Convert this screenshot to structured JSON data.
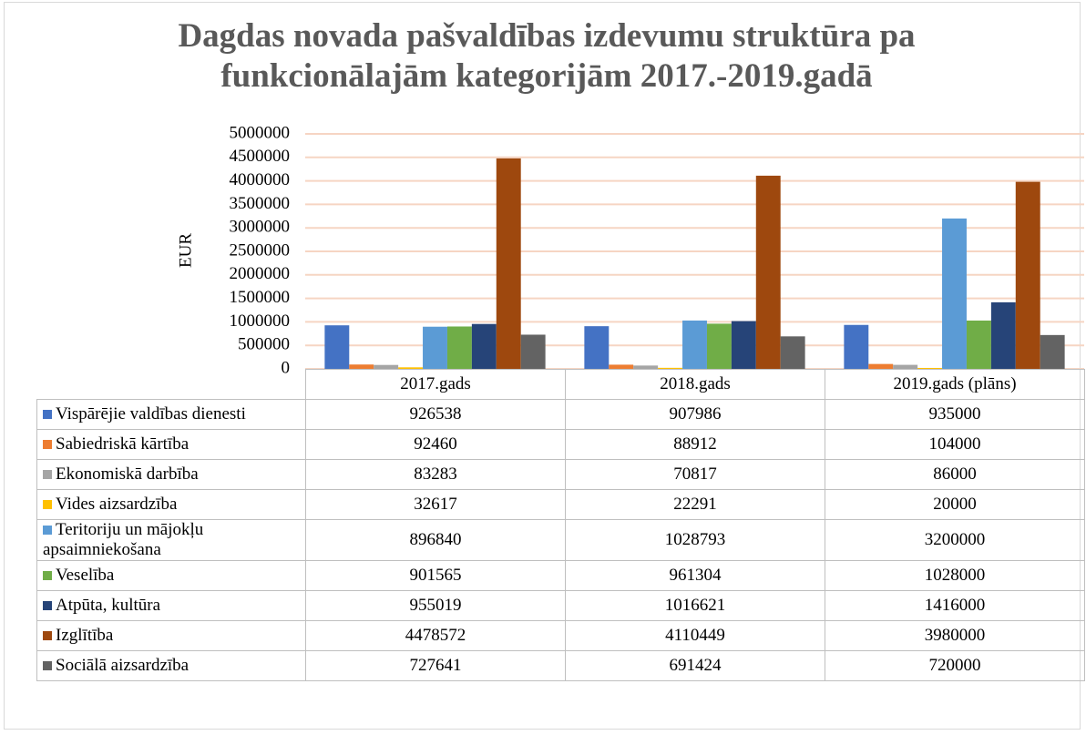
{
  "chart_data": {
    "type": "bar",
    "title": "Dagdas novada pašvaldības izdevumu struktūra pa funkcionālajām kategorijām 2017.-2019.gadā",
    "y_label": "EUR",
    "categories": [
      "2017.gads",
      "2018.gads",
      "2019.gads (plāns)"
    ],
    "series": [
      {
        "name": "Vispārējie valdības dienesti",
        "color": "#4472c4",
        "values": [
          926538,
          907986,
          935000
        ]
      },
      {
        "name": "Sabiedriskā kārtība",
        "color": "#ed7d31",
        "values": [
          92460,
          88912,
          104000
        ]
      },
      {
        "name": "Ekonomiskā darbība",
        "color": "#a5a5a5",
        "values": [
          83283,
          70817,
          86000
        ]
      },
      {
        "name": "Vides aizsardzība",
        "color": "#ffc000",
        "values": [
          32617,
          22291,
          20000
        ]
      },
      {
        "name": "Teritoriju un mājokļu apsaimniekošana",
        "color": "#5b9bd5",
        "values": [
          896840,
          1028793,
          3200000
        ]
      },
      {
        "name": "Veselība",
        "color": "#70ad47",
        "values": [
          901565,
          961304,
          1028000
        ]
      },
      {
        "name": "Atpūta, kultūra",
        "color": "#264478",
        "values": [
          955019,
          1016621,
          1416000
        ]
      },
      {
        "name": "Izglītība",
        "color": "#9e480e",
        "values": [
          4478572,
          4110449,
          3980000
        ]
      },
      {
        "name": "Sociālā aizsardzība",
        "color": "#636363",
        "values": [
          727641,
          691424,
          720000
        ]
      }
    ],
    "ylim": [
      0,
      5000000
    ],
    "yticks": [
      0,
      500000,
      1000000,
      1500000,
      2000000,
      2500000,
      3000000,
      3500000,
      4000000,
      4500000,
      5000000
    ],
    "grid": true
  }
}
